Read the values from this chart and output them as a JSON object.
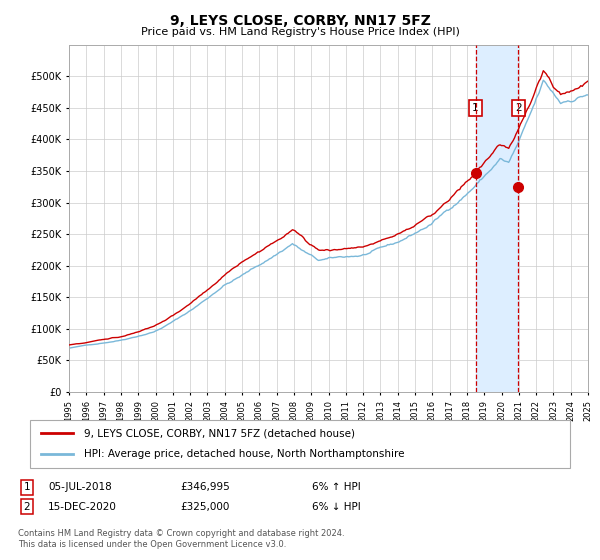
{
  "title": "9, LEYS CLOSE, CORBY, NN17 5FZ",
  "subtitle": "Price paid vs. HM Land Registry's House Price Index (HPI)",
  "legend_line1": "9, LEYS CLOSE, CORBY, NN17 5FZ (detached house)",
  "legend_line2": "HPI: Average price, detached house, North Northamptonshire",
  "annotation1": {
    "label": "1",
    "date": "05-JUL-2018",
    "price": 346995,
    "pct": "6%",
    "dir": "↑"
  },
  "annotation2": {
    "label": "2",
    "date": "15-DEC-2020",
    "price": 325000,
    "pct": "6%",
    "dir": "↓"
  },
  "hpi_color": "#7ab8d9",
  "price_color": "#cc0000",
  "dot_color": "#cc0000",
  "vline_color": "#cc0000",
  "vshade_color": "#ddeeff",
  "grid_color": "#cccccc",
  "background_color": "#ffffff",
  "title_fontsize": 10,
  "subtitle_fontsize": 8,
  "legend_fontsize": 7.5,
  "footer_fontsize": 6,
  "ylim": [
    0,
    550000
  ],
  "yticks": [
    0,
    50000,
    100000,
    150000,
    200000,
    250000,
    300000,
    350000,
    400000,
    450000,
    500000
  ],
  "year_start": 1995,
  "year_end": 2025,
  "sale1_year": 2018.5,
  "sale1_price": 346995,
  "sale2_year": 2020.96,
  "sale2_price": 325000,
  "footer": "Contains HM Land Registry data © Crown copyright and database right 2024.\nThis data is licensed under the Open Government Licence v3.0."
}
